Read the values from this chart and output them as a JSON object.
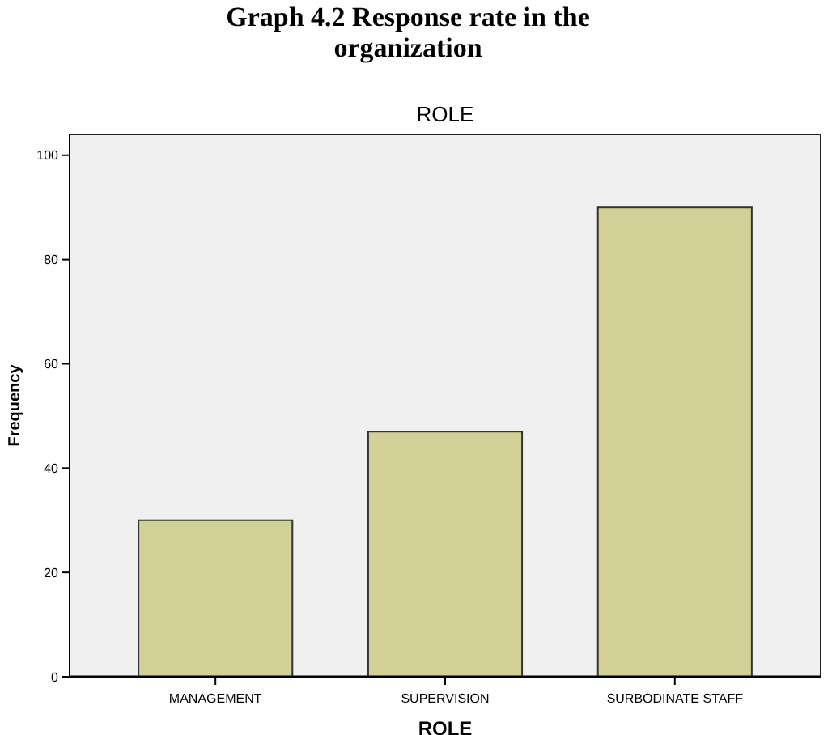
{
  "chart_data": {
    "type": "bar",
    "title": "Graph 4.2 Response rate in the organization",
    "subtitle": "ROLE",
    "xlabel": "ROLE",
    "ylabel": "Frequency",
    "categories": [
      "MANAGEMENT",
      "SUPERVISION",
      "SURBODINATE STAFF"
    ],
    "values": [
      30,
      47,
      90
    ],
    "color": "#d2d096",
    "ylim": [
      0,
      104
    ],
    "yticks": [
      0,
      20,
      40,
      60,
      80,
      100
    ],
    "grid": false
  }
}
